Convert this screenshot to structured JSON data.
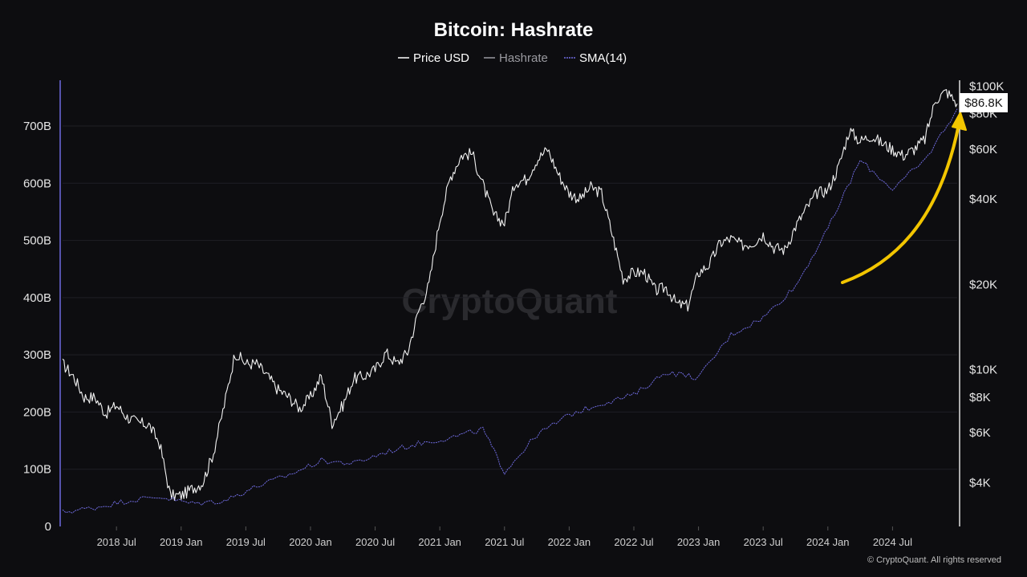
{
  "chart_data": {
    "type": "line",
    "title": "Bitcoin: Hashrate",
    "legend": [
      {
        "label": "Price USD",
        "color": "#ffffff"
      },
      {
        "label": "Hashrate",
        "color": "#9a9aa0"
      },
      {
        "label": "SMA(14)",
        "color": "#6f6be0"
      }
    ],
    "legend_position": "top-center",
    "x_range": [
      "2018-02",
      "2025-01"
    ],
    "x_ticks": [
      "2018 Jul",
      "2019 Jan",
      "2019 Jul",
      "2020 Jan",
      "2020 Jul",
      "2021 Jan",
      "2021 Jul",
      "2022 Jan",
      "2022 Jul",
      "2023 Jan",
      "2023 Jul",
      "2024 Jan",
      "2024 Jul"
    ],
    "y_left": {
      "label": "",
      "ticks": [
        "0",
        "100B",
        "200B",
        "300B",
        "400B",
        "500B",
        "600B",
        "700B"
      ],
      "ylim": [
        0,
        780
      ],
      "unit": "B"
    },
    "y_right": {
      "label": "",
      "scale": "log",
      "ticks": [
        "$100K",
        "$80K",
        "$60K",
        "$40K",
        "$20K",
        "$10K",
        "$8K",
        "$6K",
        "$4K"
      ],
      "tick_values": [
        100000,
        80000,
        60000,
        40000,
        20000,
        10000,
        8000,
        6000,
        4000
      ]
    },
    "current_price_label": "$86.8K",
    "grid": true,
    "series": [
      {
        "name": "Price USD",
        "axis": "right",
        "x": [
          "2018-02",
          "2018-03",
          "2018-04",
          "2018-05",
          "2018-06",
          "2018-07",
          "2018-08",
          "2018-09",
          "2018-10",
          "2018-11",
          "2018-12",
          "2019-01",
          "2019-02",
          "2019-03",
          "2019-04",
          "2019-05",
          "2019-06",
          "2019-07",
          "2019-08",
          "2019-09",
          "2019-10",
          "2019-11",
          "2019-12",
          "2020-01",
          "2020-02",
          "2020-03",
          "2020-04",
          "2020-05",
          "2020-06",
          "2020-07",
          "2020-08",
          "2020-09",
          "2020-10",
          "2020-11",
          "2020-12",
          "2021-01",
          "2021-02",
          "2021-03",
          "2021-04",
          "2021-05",
          "2021-06",
          "2021-07",
          "2021-08",
          "2021-09",
          "2021-10",
          "2021-11",
          "2021-12",
          "2022-01",
          "2022-02",
          "2022-03",
          "2022-04",
          "2022-05",
          "2022-06",
          "2022-07",
          "2022-08",
          "2022-09",
          "2022-10",
          "2022-11",
          "2022-12",
          "2023-01",
          "2023-02",
          "2023-03",
          "2023-04",
          "2023-05",
          "2023-06",
          "2023-07",
          "2023-08",
          "2023-09",
          "2023-10",
          "2023-11",
          "2023-12",
          "2024-01",
          "2024-02",
          "2024-03",
          "2024-04",
          "2024-05",
          "2024-06",
          "2024-07",
          "2024-08",
          "2024-09",
          "2024-10",
          "2024-11",
          "2024-12",
          "2025-01"
        ],
        "values": [
          10500,
          9500,
          8000,
          8000,
          7000,
          7500,
          6800,
          6500,
          6400,
          5500,
          3600,
          3600,
          3800,
          4000,
          5100,
          7500,
          11500,
          10500,
          10500,
          9500,
          8500,
          8000,
          7300,
          8000,
          9500,
          6500,
          7500,
          9300,
          9500,
          10000,
          11500,
          10500,
          11500,
          16000,
          20000,
          34000,
          48000,
          57000,
          58000,
          45000,
          35000,
          33000,
          46000,
          47000,
          55000,
          60000,
          49000,
          42000,
          40000,
          44000,
          42000,
          30000,
          21000,
          22000,
          22000,
          19000,
          19500,
          17000,
          16800,
          22000,
          23500,
          28000,
          29000,
          27500,
          28000,
          30000,
          27000,
          26500,
          32000,
          37000,
          42000,
          43000,
          52000,
          70000,
          64000,
          67000,
          63000,
          60000,
          57000,
          60000,
          65000,
          90000,
          96000,
          86800
        ]
      },
      {
        "name": "SMA(14)",
        "axis": "left",
        "x": [
          "2018-02",
          "2018-05",
          "2018-08",
          "2018-11",
          "2019-02",
          "2019-05",
          "2019-08",
          "2019-11",
          "2020-02",
          "2020-05",
          "2020-08",
          "2020-11",
          "2021-02",
          "2021-05",
          "2021-07",
          "2021-10",
          "2022-01",
          "2022-04",
          "2022-07",
          "2022-10",
          "2023-01",
          "2023-04",
          "2023-07",
          "2023-10",
          "2024-01",
          "2024-04",
          "2024-07",
          "2024-10",
          "2025-01"
        ],
        "values": [
          25,
          33,
          45,
          52,
          40,
          45,
          70,
          90,
          115,
          110,
          130,
          145,
          155,
          170,
          95,
          160,
          195,
          215,
          230,
          270,
          260,
          335,
          365,
          420,
          520,
          640,
          590,
          640,
          730
        ]
      }
    ]
  },
  "annotation": {
    "arrow_color": "#f2c500"
  },
  "watermark": "CryptoQuant",
  "copyright": "© CryptoQuant. All rights reserved"
}
